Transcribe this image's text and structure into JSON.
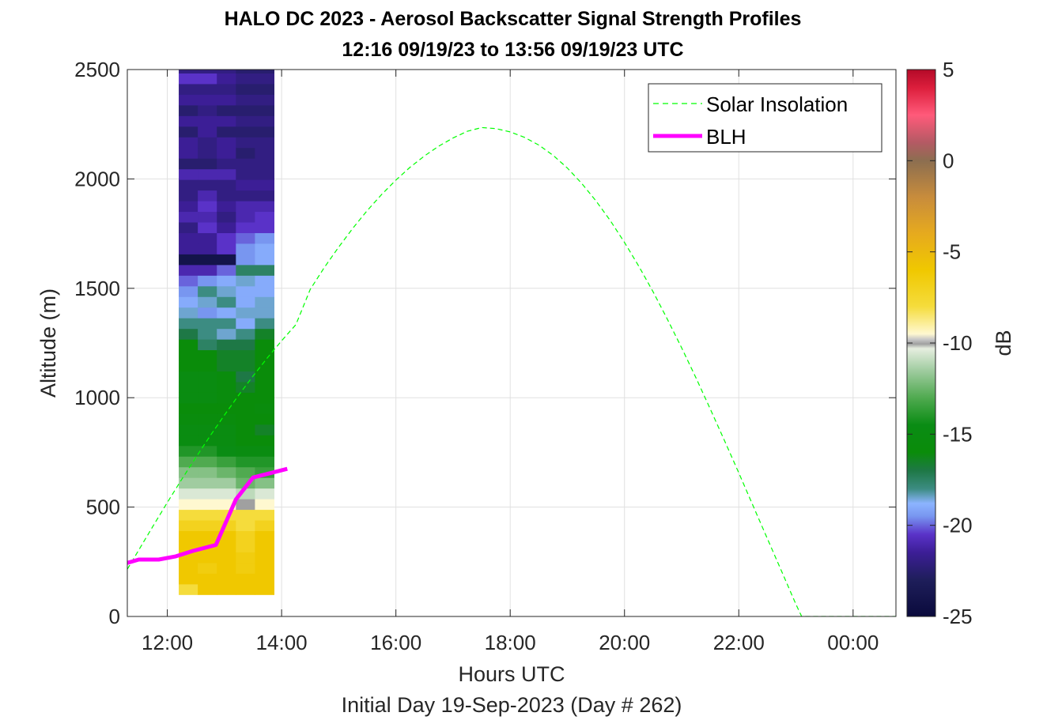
{
  "chart_data": {
    "type": "heatmap",
    "title": "HALO DC 2023 - Aerosol Backscatter Signal Strength Profiles",
    "subtitle": "12:16 09/19/23 to 13:56 09/19/23  UTC",
    "xlabel": "Hours UTC",
    "xlabel2": "Initial Day 19-Sep-2023 (Day # 262)",
    "ylabel": "Altitude (m)",
    "colorbar_label": "dB",
    "xlim": [
      11.3,
      24.75
    ],
    "ylim": [
      0,
      2500
    ],
    "clim": [
      -25,
      5
    ],
    "grid": true,
    "legend_position": "top-right",
    "x_ticks": [
      12,
      14,
      16,
      18,
      20,
      22,
      24
    ],
    "x_tick_labels": [
      "12:00",
      "14:00",
      "16:00",
      "18:00",
      "20:00",
      "22:00",
      "00:00"
    ],
    "y_ticks": [
      0,
      500,
      1000,
      1500,
      2000,
      2500
    ],
    "y_tick_labels": [
      "0",
      "500",
      "1000",
      "1500",
      "2000",
      "2500"
    ],
    "cb_ticks": [
      5,
      0,
      -5,
      -10,
      -15,
      -20,
      -25
    ],
    "cb_tick_labels": [
      "5",
      "0",
      "-5",
      "-10",
      "-15",
      "-20",
      "-25"
    ],
    "colormap": [
      {
        "v": -25,
        "c": "#0a0a3c"
      },
      {
        "v": -23,
        "c": "#1e1e5a"
      },
      {
        "v": -21.5,
        "c": "#3c1e96"
      },
      {
        "v": -20.5,
        "c": "#5a32c8"
      },
      {
        "v": -19.5,
        "c": "#7896f0"
      },
      {
        "v": -18.8,
        "c": "#8cb4ff"
      },
      {
        "v": -18,
        "c": "#3c8c82"
      },
      {
        "v": -17,
        "c": "#1e7846"
      },
      {
        "v": -16,
        "c": "#0a8c0a"
      },
      {
        "v": -14.5,
        "c": "#0a8c14"
      },
      {
        "v": -13,
        "c": "#50aa50"
      },
      {
        "v": -11.5,
        "c": "#a0cca0"
      },
      {
        "v": -10.3,
        "c": "#e6eee0"
      },
      {
        "v": -10.05,
        "c": "#a0a0a0"
      },
      {
        "v": -9.8,
        "c": "#c8c8c8"
      },
      {
        "v": -9.5,
        "c": "#fff8d0"
      },
      {
        "v": -8,
        "c": "#f5dc3c"
      },
      {
        "v": -6,
        "c": "#f0c800"
      },
      {
        "v": -4,
        "c": "#e6aa1e"
      },
      {
        "v": -2,
        "c": "#c88c3c"
      },
      {
        "v": 0,
        "c": "#8c6e50"
      },
      {
        "v": 1,
        "c": "#b45a64"
      },
      {
        "v": 2.5,
        "c": "#ff5a7a"
      },
      {
        "v": 4,
        "c": "#dc1e3c"
      },
      {
        "v": 5,
        "c": "#b40a28"
      }
    ],
    "backscatter": {
      "time_start": 12.2,
      "time_step": 0.333333,
      "alt_start": 100,
      "alt_step": 48.65,
      "columns_db": [
        [
          -8,
          -6,
          -6,
          -6,
          -6,
          -6,
          -7,
          -8,
          -9.5,
          -10.5,
          -11.5,
          -12,
          -13,
          -14,
          -15,
          -15,
          -15.5,
          -16,
          -15,
          -15,
          -15,
          -16,
          -16,
          -16,
          -17,
          -18,
          -18.5,
          -19,
          -19.5,
          -20,
          -21,
          -24,
          -21.5,
          -21.5,
          -22,
          -21,
          -21.5,
          -22,
          -22,
          -21,
          -22.5,
          -21.5,
          -21.5,
          -22.5,
          -21.5,
          -22.5,
          -21.5,
          -22,
          -20.5,
          -22,
          -22.5,
          -23,
          -24,
          -24.5,
          -23.5
        ],
        [
          -6,
          -6,
          -6.5,
          -6,
          -6,
          -6,
          -7,
          -8,
          -9.5,
          -10.5,
          -11.5,
          -12,
          -13,
          -14,
          -15,
          -15,
          -15.5,
          -16,
          -15,
          -15,
          -15,
          -16,
          -16,
          -17.5,
          -18,
          -18,
          -19.5,
          -18.5,
          -18,
          -19.5,
          -21,
          -24,
          -21.5,
          -21.5,
          -20.5,
          -21,
          -20.5,
          -21,
          -22,
          -21,
          -22.5,
          -22,
          -22,
          -21.5,
          -21.5,
          -22,
          -21.5,
          -22,
          -20.5,
          -22,
          -22.5,
          -23.5,
          -24,
          -24,
          -23.5
        ],
        [
          -6,
          -6,
          -6,
          -6,
          -6,
          -6,
          -7,
          -8,
          -9.5,
          -10.5,
          -11.5,
          -12.5,
          -13.5,
          -14.5,
          -15,
          -15,
          -15.5,
          -16,
          -15.5,
          -15.5,
          -15.5,
          -16.5,
          -16.5,
          -17,
          -18.5,
          -18,
          -19,
          -18,
          -18.5,
          -19,
          -20,
          -24,
          -20.5,
          -20.5,
          -21.5,
          -22,
          -21.5,
          -22,
          -22,
          -21,
          -22,
          -21.5,
          -21.5,
          -22.5,
          -21.5,
          -22.5,
          -21.5,
          -22,
          -21.5,
          -22,
          -22.5,
          -23.5,
          -24,
          -24,
          -23.5
        ],
        [
          -6,
          -6,
          -6.5,
          -6.5,
          -7,
          -7,
          -8,
          -8,
          -10.05,
          -11,
          -12.5,
          -13,
          -14,
          -15,
          -16,
          -16,
          -16,
          -16,
          -16,
          -16.5,
          -17,
          -16.5,
          -16.5,
          -17,
          -18,
          -19,
          -18.5,
          -19,
          -19,
          -18.5,
          -17.5,
          -19.5,
          -19.5,
          -20,
          -20.5,
          -21,
          -21,
          -22,
          -21.5,
          -22,
          -22,
          -22.5,
          -22,
          -22.5,
          -22,
          -22.5,
          -22,
          -22.5,
          -22,
          -22.5,
          -23,
          -23,
          -23,
          -23,
          -22.5
        ],
        [
          -6,
          -6,
          -6,
          -6,
          -6,
          -6,
          -7,
          -8,
          -9.5,
          -10.5,
          -12,
          -13.5,
          -14,
          -15,
          -16,
          -16.5,
          -16,
          -15.5,
          -16,
          -16,
          -16,
          -16,
          -16,
          -16,
          -16.5,
          -18,
          -18.5,
          -18.5,
          -19,
          -19,
          -17.5,
          -19,
          -19,
          -19.5,
          -20.5,
          -20.5,
          -21,
          -22,
          -21.5,
          -22,
          -22,
          -22,
          -22,
          -22.5,
          -22,
          -22.5,
          -22,
          -22.5,
          -22,
          -22.5,
          -22.5,
          -22,
          -22,
          -22.5,
          -22.5
        ]
      ]
    },
    "series": [
      {
        "name": "Solar Insolation",
        "color": "#00ff00",
        "style": "dashed",
        "points": [
          [
            11.3,
            216
          ],
          [
            11.5,
            304
          ],
          [
            11.75,
            413
          ],
          [
            12.0,
            521
          ],
          [
            12.25,
            626
          ],
          [
            12.5,
            727
          ],
          [
            12.75,
            826
          ],
          [
            13.0,
            921
          ],
          [
            13.25,
            1012
          ],
          [
            13.5,
            1099
          ],
          [
            13.75,
            1182
          ],
          [
            14.0,
            1260
          ],
          [
            14.25,
            1334
          ],
          [
            14.5,
            1495
          ],
          [
            14.75,
            1596
          ],
          [
            15.0,
            1689
          ],
          [
            15.25,
            1776
          ],
          [
            15.5,
            1856
          ],
          [
            15.75,
            1929
          ],
          [
            16.0,
            1995
          ],
          [
            16.25,
            2054
          ],
          [
            16.5,
            2105
          ],
          [
            16.75,
            2150
          ],
          [
            17.0,
            2187
          ],
          [
            17.25,
            2218
          ],
          [
            17.5,
            2235
          ],
          [
            17.75,
            2230
          ],
          [
            18.0,
            2215
          ],
          [
            18.25,
            2190
          ],
          [
            18.5,
            2155
          ],
          [
            18.75,
            2108
          ],
          [
            19.0,
            2050
          ],
          [
            19.25,
            1980
          ],
          [
            19.5,
            1900
          ],
          [
            19.75,
            1810
          ],
          [
            20.0,
            1710
          ],
          [
            20.25,
            1601
          ],
          [
            20.5,
            1484
          ],
          [
            20.75,
            1359
          ],
          [
            21.0,
            1228
          ],
          [
            21.25,
            1091
          ],
          [
            21.5,
            949
          ],
          [
            21.75,
            804
          ],
          [
            22.0,
            656
          ],
          [
            22.25,
            506
          ],
          [
            22.5,
            356
          ],
          [
            22.75,
            206
          ],
          [
            23.0,
            56
          ],
          [
            23.1,
            0
          ],
          [
            24.75,
            0
          ]
        ]
      },
      {
        "name": "BLH",
        "color": "#ff00ff",
        "style": "solid",
        "points": [
          [
            11.3,
            245
          ],
          [
            11.5,
            260
          ],
          [
            11.85,
            260
          ],
          [
            12.15,
            275
          ],
          [
            12.45,
            300
          ],
          [
            12.85,
            327
          ],
          [
            13.2,
            535
          ],
          [
            13.5,
            635
          ],
          [
            13.8,
            655
          ],
          [
            14.1,
            675
          ]
        ]
      }
    ]
  }
}
